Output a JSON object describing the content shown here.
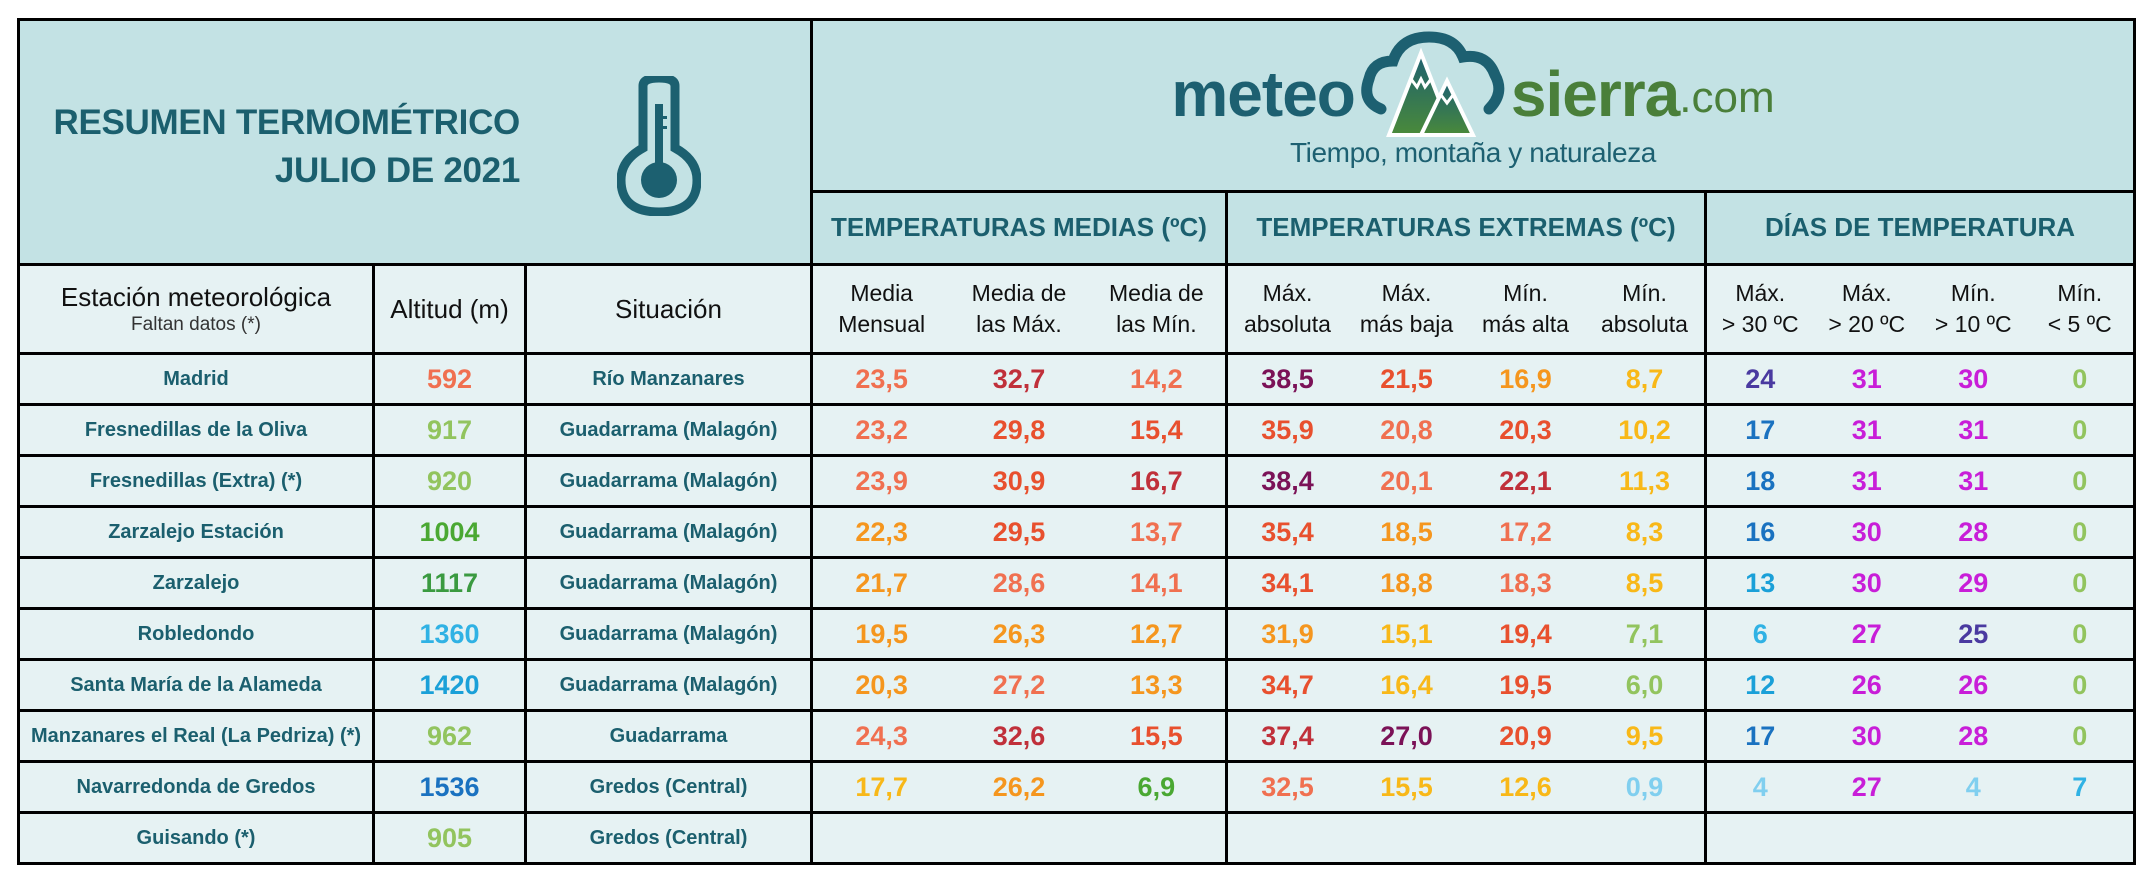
{
  "header": {
    "title_line1": "RESUMEN TERMOMÉTRICO",
    "title_line2": "JULIO DE 2021",
    "thermometer_icon": "thermometer-icon",
    "logo": {
      "meteo": "meteo",
      "sierra": "sierra",
      "com": ".com",
      "tagline": "Tiempo, montaña y naturaleza",
      "mark_icon": "cloud-mountain-icon"
    },
    "groups": [
      {
        "label": "TEMPERATURAS MEDIAS (ºC)"
      },
      {
        "label": "TEMPERATURAS EXTREMAS (ºC)"
      },
      {
        "label": "DÍAS DE TEMPERATURA"
      }
    ]
  },
  "columns": {
    "station": "Estación meteorológica",
    "station_note": "Faltan datos (*)",
    "altitude": "Altitud (m)",
    "situation": "Situación",
    "medias": [
      {
        "l1": "Media",
        "l2": "Mensual"
      },
      {
        "l1": "Media de",
        "l2": "las Máx."
      },
      {
        "l1": "Media de",
        "l2": "las Mín."
      }
    ],
    "extremas": [
      {
        "l1": "Máx.",
        "l2": "absoluta"
      },
      {
        "l1": "Máx.",
        "l2": "más baja"
      },
      {
        "l1": "Mín.",
        "l2": "más alta"
      },
      {
        "l1": "Mín.",
        "l2": "absoluta"
      }
    ],
    "dias": [
      {
        "l1": "Máx.",
        "l2": "> 30 ºC"
      },
      {
        "l1": "Máx.",
        "l2": "> 20 ºC"
      },
      {
        "l1": "Mín.",
        "l2": "> 10 ºC"
      },
      {
        "l1": "Mín.",
        "l2": "< 5 ºC"
      }
    ]
  },
  "palette": {
    "purple": "#7b1257",
    "deep_red": "#c0303a",
    "red_orange": "#e8502e",
    "salmon": "#f07050",
    "orange": "#f5961e",
    "amber": "#f8b818",
    "light_green": "#92c45e",
    "green": "#4aa832",
    "dark_green": "#3a9a40",
    "light_blue": "#80cfef",
    "sky_blue": "#30b2e4",
    "cyan_blue": "#1aa0d8",
    "blue": "#1a72c0",
    "indigo": "#4a3aa0",
    "magenta": "#c81ed8",
    "header_bg": "#c3e2e4",
    "body_bg": "#e6f2f3",
    "text_teal": "#1b5f6e"
  },
  "rows": [
    {
      "station": "Madrid",
      "altitude": {
        "v": "592",
        "c": "salmon"
      },
      "situation": "Río Manzanares",
      "medias": [
        {
          "v": "23,5",
          "c": "salmon"
        },
        {
          "v": "32,7",
          "c": "deep_red"
        },
        {
          "v": "14,2",
          "c": "salmon"
        }
      ],
      "extremas": [
        {
          "v": "38,5",
          "c": "purple"
        },
        {
          "v": "21,5",
          "c": "red_orange"
        },
        {
          "v": "16,9",
          "c": "orange"
        },
        {
          "v": "8,7",
          "c": "amber"
        }
      ],
      "dias": [
        {
          "v": "24",
          "c": "indigo"
        },
        {
          "v": "31",
          "c": "magenta"
        },
        {
          "v": "30",
          "c": "magenta"
        },
        {
          "v": "0",
          "c": "light_green"
        }
      ]
    },
    {
      "station": "Fresnedillas de la Oliva",
      "altitude": {
        "v": "917",
        "c": "light_green"
      },
      "situation": "Guadarrama (Malagón)",
      "medias": [
        {
          "v": "23,2",
          "c": "salmon"
        },
        {
          "v": "29,8",
          "c": "red_orange"
        },
        {
          "v": "15,4",
          "c": "red_orange"
        }
      ],
      "extremas": [
        {
          "v": "35,9",
          "c": "red_orange"
        },
        {
          "v": "20,8",
          "c": "salmon"
        },
        {
          "v": "20,3",
          "c": "red_orange"
        },
        {
          "v": "10,2",
          "c": "amber"
        }
      ],
      "dias": [
        {
          "v": "17",
          "c": "blue"
        },
        {
          "v": "31",
          "c": "magenta"
        },
        {
          "v": "31",
          "c": "magenta"
        },
        {
          "v": "0",
          "c": "light_green"
        }
      ]
    },
    {
      "station": "Fresnedillas (Extra) (*)",
      "altitude": {
        "v": "920",
        "c": "light_green"
      },
      "situation": "Guadarrama (Malagón)",
      "medias": [
        {
          "v": "23,9",
          "c": "salmon"
        },
        {
          "v": "30,9",
          "c": "red_orange"
        },
        {
          "v": "16,7",
          "c": "deep_red"
        }
      ],
      "extremas": [
        {
          "v": "38,4",
          "c": "purple"
        },
        {
          "v": "20,1",
          "c": "salmon"
        },
        {
          "v": "22,1",
          "c": "deep_red"
        },
        {
          "v": "11,3",
          "c": "amber"
        }
      ],
      "dias": [
        {
          "v": "18",
          "c": "blue"
        },
        {
          "v": "31",
          "c": "magenta"
        },
        {
          "v": "31",
          "c": "magenta"
        },
        {
          "v": "0",
          "c": "light_green"
        }
      ]
    },
    {
      "station": "Zarzalejo Estación",
      "altitude": {
        "v": "1004",
        "c": "green"
      },
      "situation": "Guadarrama (Malagón)",
      "medias": [
        {
          "v": "22,3",
          "c": "orange"
        },
        {
          "v": "29,5",
          "c": "red_orange"
        },
        {
          "v": "13,7",
          "c": "salmon"
        }
      ],
      "extremas": [
        {
          "v": "35,4",
          "c": "red_orange"
        },
        {
          "v": "18,5",
          "c": "orange"
        },
        {
          "v": "17,2",
          "c": "salmon"
        },
        {
          "v": "8,3",
          "c": "amber"
        }
      ],
      "dias": [
        {
          "v": "16",
          "c": "blue"
        },
        {
          "v": "30",
          "c": "magenta"
        },
        {
          "v": "28",
          "c": "magenta"
        },
        {
          "v": "0",
          "c": "light_green"
        }
      ]
    },
    {
      "station": "Zarzalejo",
      "altitude": {
        "v": "1117",
        "c": "dark_green"
      },
      "situation": "Guadarrama (Malagón)",
      "medias": [
        {
          "v": "21,7",
          "c": "orange"
        },
        {
          "v": "28,6",
          "c": "salmon"
        },
        {
          "v": "14,1",
          "c": "salmon"
        }
      ],
      "extremas": [
        {
          "v": "34,1",
          "c": "red_orange"
        },
        {
          "v": "18,8",
          "c": "orange"
        },
        {
          "v": "18,3",
          "c": "salmon"
        },
        {
          "v": "8,5",
          "c": "amber"
        }
      ],
      "dias": [
        {
          "v": "13",
          "c": "cyan_blue"
        },
        {
          "v": "30",
          "c": "magenta"
        },
        {
          "v": "29",
          "c": "magenta"
        },
        {
          "v": "0",
          "c": "light_green"
        }
      ]
    },
    {
      "station": "Robledondo",
      "altitude": {
        "v": "1360",
        "c": "sky_blue"
      },
      "situation": "Guadarrama (Malagón)",
      "medias": [
        {
          "v": "19,5",
          "c": "orange"
        },
        {
          "v": "26,3",
          "c": "orange"
        },
        {
          "v": "12,7",
          "c": "orange"
        }
      ],
      "extremas": [
        {
          "v": "31,9",
          "c": "orange"
        },
        {
          "v": "15,1",
          "c": "amber"
        },
        {
          "v": "19,4",
          "c": "red_orange"
        },
        {
          "v": "7,1",
          "c": "light_green"
        }
      ],
      "dias": [
        {
          "v": "6",
          "c": "sky_blue"
        },
        {
          "v": "27",
          "c": "magenta"
        },
        {
          "v": "25",
          "c": "indigo"
        },
        {
          "v": "0",
          "c": "light_green"
        }
      ]
    },
    {
      "station": "Santa María de la Alameda",
      "altitude": {
        "v": "1420",
        "c": "cyan_blue"
      },
      "situation": "Guadarrama (Malagón)",
      "medias": [
        {
          "v": "20,3",
          "c": "orange"
        },
        {
          "v": "27,2",
          "c": "salmon"
        },
        {
          "v": "13,3",
          "c": "orange"
        }
      ],
      "extremas": [
        {
          "v": "34,7",
          "c": "red_orange"
        },
        {
          "v": "16,4",
          "c": "amber"
        },
        {
          "v": "19,5",
          "c": "red_orange"
        },
        {
          "v": "6,0",
          "c": "light_green"
        }
      ],
      "dias": [
        {
          "v": "12",
          "c": "cyan_blue"
        },
        {
          "v": "26",
          "c": "magenta"
        },
        {
          "v": "26",
          "c": "magenta"
        },
        {
          "v": "0",
          "c": "light_green"
        }
      ]
    },
    {
      "station": "Manzanares el Real (La Pedriza) (*)",
      "altitude": {
        "v": "962",
        "c": "light_green"
      },
      "situation": "Guadarrama",
      "medias": [
        {
          "v": "24,3",
          "c": "salmon"
        },
        {
          "v": "32,6",
          "c": "deep_red"
        },
        {
          "v": "15,5",
          "c": "red_orange"
        }
      ],
      "extremas": [
        {
          "v": "37,4",
          "c": "deep_red"
        },
        {
          "v": "27,0",
          "c": "purple"
        },
        {
          "v": "20,9",
          "c": "red_orange"
        },
        {
          "v": "9,5",
          "c": "amber"
        }
      ],
      "dias": [
        {
          "v": "17",
          "c": "blue"
        },
        {
          "v": "30",
          "c": "magenta"
        },
        {
          "v": "28",
          "c": "magenta"
        },
        {
          "v": "0",
          "c": "light_green"
        }
      ]
    },
    {
      "station": "Navarredonda de Gredos",
      "altitude": {
        "v": "1536",
        "c": "blue"
      },
      "situation": "Gredos (Central)",
      "medias": [
        {
          "v": "17,7",
          "c": "amber"
        },
        {
          "v": "26,2",
          "c": "orange"
        },
        {
          "v": "6,9",
          "c": "green"
        }
      ],
      "extremas": [
        {
          "v": "32,5",
          "c": "salmon"
        },
        {
          "v": "15,5",
          "c": "amber"
        },
        {
          "v": "12,6",
          "c": "amber"
        },
        {
          "v": "0,9",
          "c": "light_blue"
        }
      ],
      "dias": [
        {
          "v": "4",
          "c": "light_blue"
        },
        {
          "v": "27",
          "c": "magenta"
        },
        {
          "v": "4",
          "c": "light_blue"
        },
        {
          "v": "7",
          "c": "sky_blue"
        }
      ]
    },
    {
      "station": "Guisando (*)",
      "altitude": {
        "v": "905",
        "c": "light_green"
      },
      "situation": "Gredos (Central)",
      "medias": [],
      "extremas": [],
      "dias": []
    }
  ]
}
